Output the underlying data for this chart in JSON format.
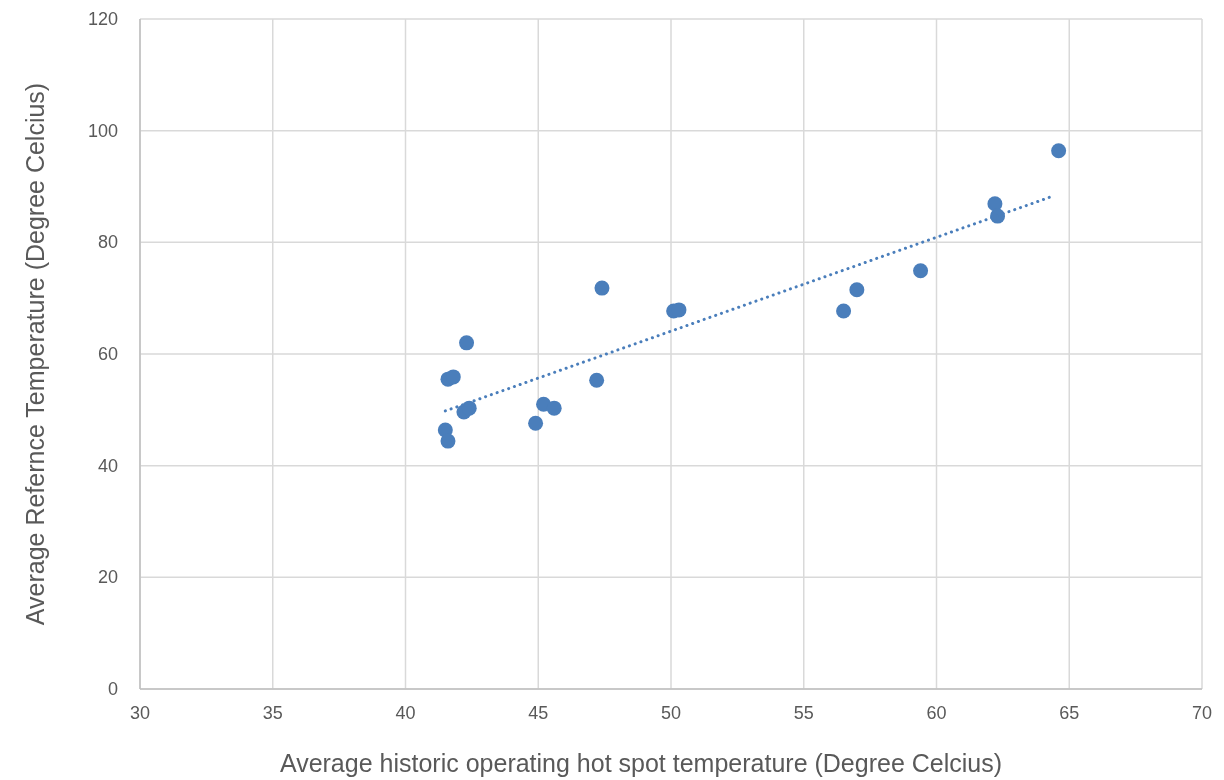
{
  "chart_data": {
    "type": "scatter",
    "xlabel": "Average historic operating hot spot temperature (Degree Celcius)",
    "ylabel": "Average Refernce Temperature (Degree Celcius)",
    "xlim": [
      30,
      70
    ],
    "xticks": [
      30,
      35,
      40,
      45,
      50,
      55,
      60,
      65,
      70
    ],
    "ylim": [
      0,
      120
    ],
    "yticks": [
      0,
      20,
      40,
      60,
      80,
      100,
      120
    ],
    "grid": true,
    "marker": "circle",
    "series": [
      {
        "color": "#4a7ebb",
        "x": [
          41.5,
          41.6,
          41.6,
          41.8,
          42.3,
          42.2,
          42.4,
          44.9,
          45.2,
          45.6,
          47.2,
          47.4,
          50.1,
          50.3,
          56.5,
          57.0,
          59.4,
          62.2,
          62.3,
          64.6
        ],
        "values": [
          46.4,
          44.4,
          55.5,
          55.9,
          62.0,
          49.6,
          50.3,
          47.6,
          51.0,
          50.3,
          55.3,
          71.8,
          67.7,
          67.9,
          67.7,
          71.5,
          74.9,
          86.9,
          84.7,
          96.4
        ]
      },
      {
        "type": "line",
        "color": "#4a7ebb",
        "line_style": "dotted",
        "marker": "none",
        "x": [
          41.5,
          64.4
        ],
        "values": [
          49.8,
          88.3
        ]
      }
    ]
  }
}
